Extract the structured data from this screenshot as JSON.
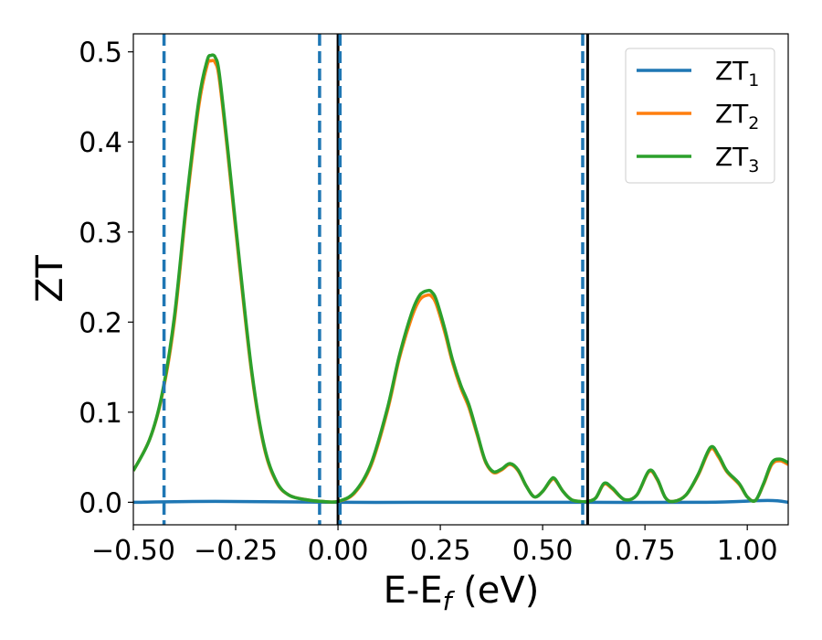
{
  "chart_data": {
    "type": "line",
    "title": "",
    "xlabel": "E-E",
    "xlabel_sub": "f",
    "xlabel_unit": " (eV)",
    "ylabel": "ZT",
    "xlim": [
      -0.5,
      1.1
    ],
    "ylim": [
      -0.025,
      0.52
    ],
    "xticks": [
      -0.5,
      -0.25,
      0.0,
      0.25,
      0.5,
      0.75,
      1.0
    ],
    "xtick_labels": [
      "−0.50",
      "−0.25",
      "0.00",
      "0.25",
      "0.50",
      "0.75",
      "1.00"
    ],
    "yticks": [
      0.0,
      0.1,
      0.2,
      0.3,
      0.4,
      0.5
    ],
    "ytick_labels": [
      "0.0",
      "0.1",
      "0.2",
      "0.3",
      "0.4",
      "0.5"
    ],
    "grid": false,
    "legend_position": "top-right",
    "series": [
      {
        "name": "ZT",
        "sub": "1",
        "color": "#1f77b4",
        "x": [
          -0.5,
          -0.3,
          0.0,
          0.3,
          0.6,
          0.9,
          1.05,
          1.1
        ],
        "y": [
          0.0,
          0.001,
          0.0,
          0.0,
          0.0,
          0.0,
          0.002,
          0.0
        ]
      },
      {
        "name": "ZT",
        "sub": "2",
        "color": "#ff7f0e",
        "x": [
          -0.5,
          -0.46,
          -0.43,
          -0.4,
          -0.37,
          -0.34,
          -0.32,
          -0.31,
          -0.3,
          -0.29,
          -0.27,
          -0.24,
          -0.21,
          -0.18,
          -0.15,
          -0.12,
          -0.08,
          -0.04,
          0.0,
          0.04,
          0.08,
          0.12,
          0.15,
          0.18,
          0.2,
          0.22,
          0.23,
          0.24,
          0.26,
          0.28,
          0.3,
          0.32,
          0.34,
          0.36,
          0.38,
          0.4,
          0.42,
          0.44,
          0.46,
          0.48,
          0.5,
          0.52,
          0.53,
          0.55,
          0.57,
          0.59,
          0.61,
          0.63,
          0.65,
          0.67,
          0.7,
          0.73,
          0.76,
          0.78,
          0.8,
          0.82,
          0.85,
          0.88,
          0.91,
          0.93,
          0.95,
          0.98,
          1.0,
          1.02,
          1.04,
          1.06,
          1.08,
          1.1
        ],
        "y": [
          0.035,
          0.07,
          0.118,
          0.2,
          0.33,
          0.44,
          0.485,
          0.49,
          0.488,
          0.47,
          0.39,
          0.26,
          0.14,
          0.06,
          0.022,
          0.008,
          0.003,
          0.001,
          0.001,
          0.01,
          0.04,
          0.1,
          0.16,
          0.205,
          0.225,
          0.23,
          0.228,
          0.22,
          0.19,
          0.155,
          0.127,
          0.105,
          0.075,
          0.045,
          0.033,
          0.036,
          0.042,
          0.035,
          0.018,
          0.006,
          0.012,
          0.024,
          0.025,
          0.012,
          0.003,
          0.001,
          0.001,
          0.005,
          0.02,
          0.015,
          0.003,
          0.008,
          0.034,
          0.025,
          0.005,
          0.001,
          0.008,
          0.03,
          0.059,
          0.05,
          0.034,
          0.02,
          0.006,
          0.002,
          0.02,
          0.042,
          0.046,
          0.042
        ]
      },
      {
        "name": "ZT",
        "sub": "3",
        "color": "#2ca02c",
        "x": [
          -0.5,
          -0.46,
          -0.43,
          -0.4,
          -0.37,
          -0.34,
          -0.32,
          -0.31,
          -0.3,
          -0.29,
          -0.27,
          -0.24,
          -0.21,
          -0.18,
          -0.15,
          -0.12,
          -0.08,
          -0.04,
          0.0,
          0.04,
          0.08,
          0.12,
          0.15,
          0.18,
          0.2,
          0.22,
          0.23,
          0.24,
          0.26,
          0.28,
          0.3,
          0.32,
          0.34,
          0.36,
          0.38,
          0.4,
          0.42,
          0.44,
          0.46,
          0.48,
          0.5,
          0.52,
          0.53,
          0.55,
          0.57,
          0.59,
          0.61,
          0.63,
          0.65,
          0.67,
          0.7,
          0.73,
          0.76,
          0.78,
          0.8,
          0.82,
          0.85,
          0.88,
          0.91,
          0.93,
          0.95,
          0.98,
          1.0,
          1.02,
          1.04,
          1.06,
          1.08,
          1.1
        ],
        "y": [
          0.035,
          0.07,
          0.12,
          0.205,
          0.335,
          0.446,
          0.49,
          0.496,
          0.494,
          0.476,
          0.395,
          0.265,
          0.143,
          0.062,
          0.023,
          0.008,
          0.003,
          0.001,
          0.001,
          0.011,
          0.042,
          0.103,
          0.163,
          0.21,
          0.23,
          0.235,
          0.233,
          0.225,
          0.194,
          0.158,
          0.13,
          0.108,
          0.077,
          0.046,
          0.034,
          0.037,
          0.043,
          0.036,
          0.018,
          0.006,
          0.012,
          0.025,
          0.026,
          0.012,
          0.003,
          0.001,
          0.001,
          0.005,
          0.021,
          0.016,
          0.003,
          0.008,
          0.035,
          0.026,
          0.005,
          0.001,
          0.008,
          0.031,
          0.061,
          0.052,
          0.035,
          0.021,
          0.006,
          0.002,
          0.021,
          0.044,
          0.048,
          0.044
        ]
      }
    ],
    "vlines": [
      {
        "x": -0.425,
        "style": "dashed",
        "color": "#1f77b4"
      },
      {
        "x": -0.045,
        "style": "dashed",
        "color": "#1f77b4"
      },
      {
        "x": 0.0,
        "style": "solid",
        "color": "#000000"
      },
      {
        "x": 0.005,
        "style": "dashed",
        "color": "#1f77b4"
      },
      {
        "x": 0.598,
        "style": "dashed",
        "color": "#1f77b4"
      },
      {
        "x": 0.61,
        "style": "solid",
        "color": "#000000"
      }
    ]
  }
}
